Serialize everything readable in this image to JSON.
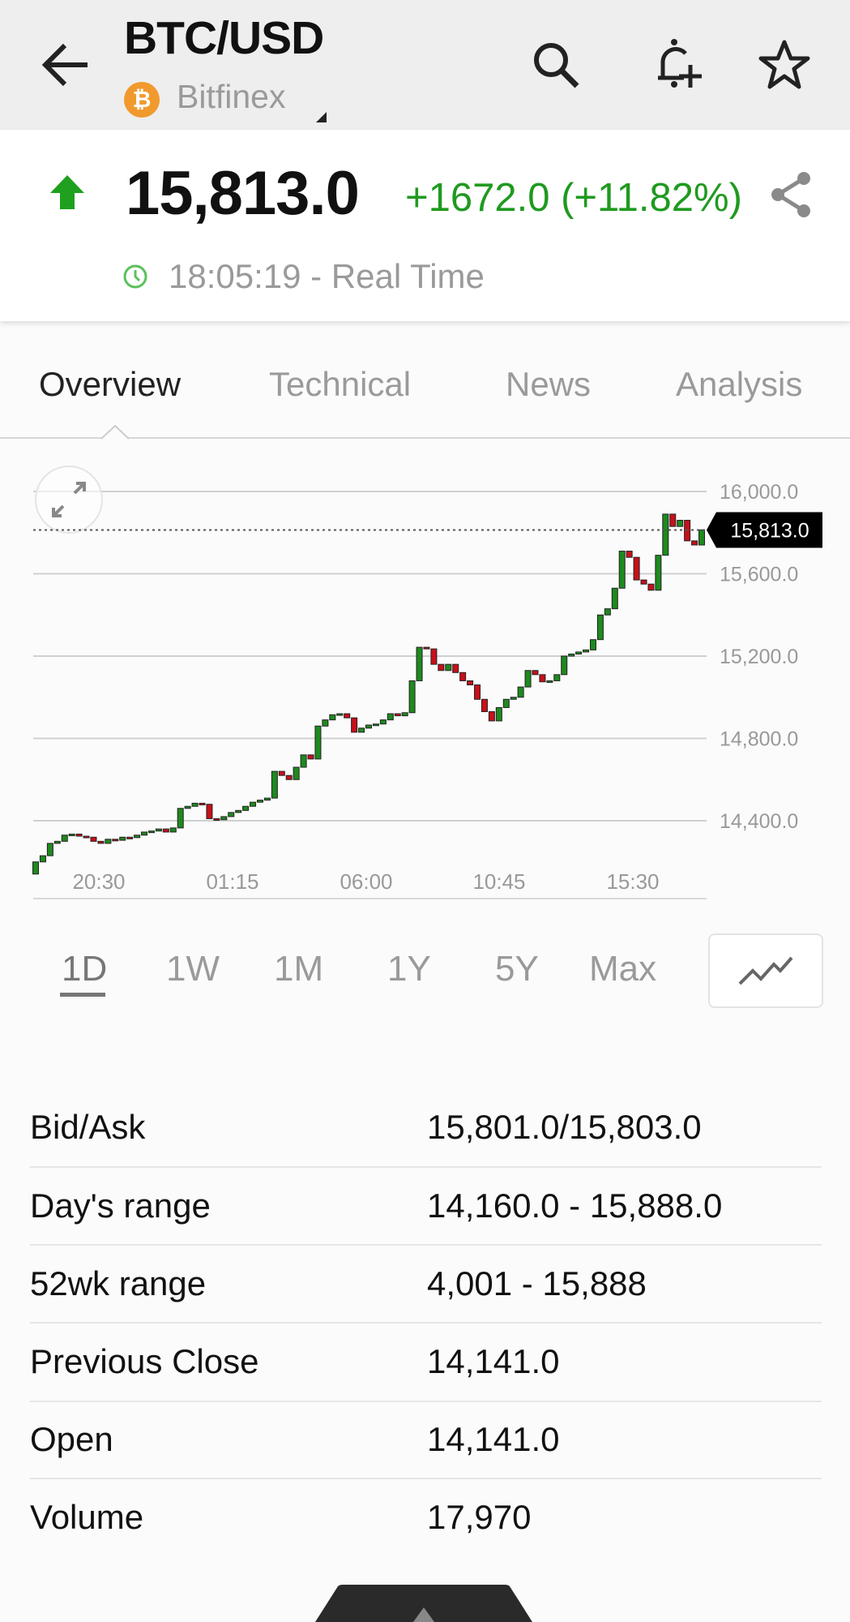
{
  "header": {
    "title": "BTC/USD",
    "exchange": "Bitfinex",
    "exchange_icon": "bitcoin-icon",
    "exchange_icon_glyph": "₿",
    "icons": [
      "back-arrow-icon",
      "search-icon",
      "add-alert-icon",
      "star-icon"
    ]
  },
  "quote": {
    "price": "15,813.0",
    "change": "+1672.0 (+11.82%)",
    "direction": "up",
    "time": "18:05:19 - Real Time",
    "up_color": "#1f9a1f"
  },
  "tabs": [
    {
      "label": "Overview",
      "active": true
    },
    {
      "label": "Technical",
      "active": false
    },
    {
      "label": "News",
      "active": false
    },
    {
      "label": "Analysis",
      "active": false
    }
  ],
  "chart_data": {
    "type": "candlestick",
    "interval_minutes": 15,
    "y_ticks": [
      "16,000.0",
      "15,600.0",
      "15,200.0",
      "14,800.0",
      "14,400.0"
    ],
    "y_tick_values": [
      16000,
      15600,
      15200,
      14800,
      14400
    ],
    "x_ticks": [
      "20:30",
      "01:15",
      "06:00",
      "10:45",
      "15:30"
    ],
    "last_price_label": "15,813.0",
    "last_price": 15813,
    "first_open": 14141,
    "grid": true,
    "up_color": "#1e8a1e",
    "down_color": "#c8101a",
    "closes": [
      14200,
      14230,
      14290,
      14300,
      14330,
      14335,
      14325,
      14320,
      14300,
      14290,
      14310,
      14305,
      14320,
      14318,
      14330,
      14345,
      14350,
      14360,
      14345,
      14365,
      14460,
      14470,
      14485,
      14480,
      14410,
      14405,
      14420,
      14440,
      14450,
      14470,
      14490,
      14500,
      14510,
      14640,
      14620,
      14600,
      14660,
      14720,
      14700,
      14860,
      14890,
      14915,
      14920,
      14900,
      14830,
      14850,
      14865,
      14870,
      14890,
      14920,
      14910,
      14925,
      15080,
      15243,
      15235,
      15160,
      15130,
      15160,
      15120,
      15080,
      15060,
      14990,
      14930,
      14885,
      14950,
      14990,
      15000,
      15050,
      15130,
      15110,
      15075,
      15080,
      15110,
      15200,
      15210,
      15220,
      15230,
      15280,
      15400,
      15430,
      15530,
      15710,
      15680,
      15570,
      15550,
      15520,
      15690,
      15890,
      15830,
      15860,
      15760,
      15740,
      15813
    ]
  },
  "ranges": [
    {
      "label": "1D",
      "active": true
    },
    {
      "label": "1W",
      "active": false
    },
    {
      "label": "1M",
      "active": false
    },
    {
      "label": "1Y",
      "active": false
    },
    {
      "label": "5Y",
      "active": false
    },
    {
      "label": "Max",
      "active": false
    }
  ],
  "stats": [
    {
      "label": "Bid/Ask",
      "value": "15,801.0/15,803.0"
    },
    {
      "label": "Day's range",
      "value": "14,160.0 - 15,888.0"
    },
    {
      "label": "52wk range",
      "value": "4,001 - 15,888"
    },
    {
      "label": "Previous Close",
      "value": "14,141.0"
    },
    {
      "label": "Open",
      "value": "14,141.0"
    },
    {
      "label": "Volume",
      "value": "17,970"
    }
  ]
}
